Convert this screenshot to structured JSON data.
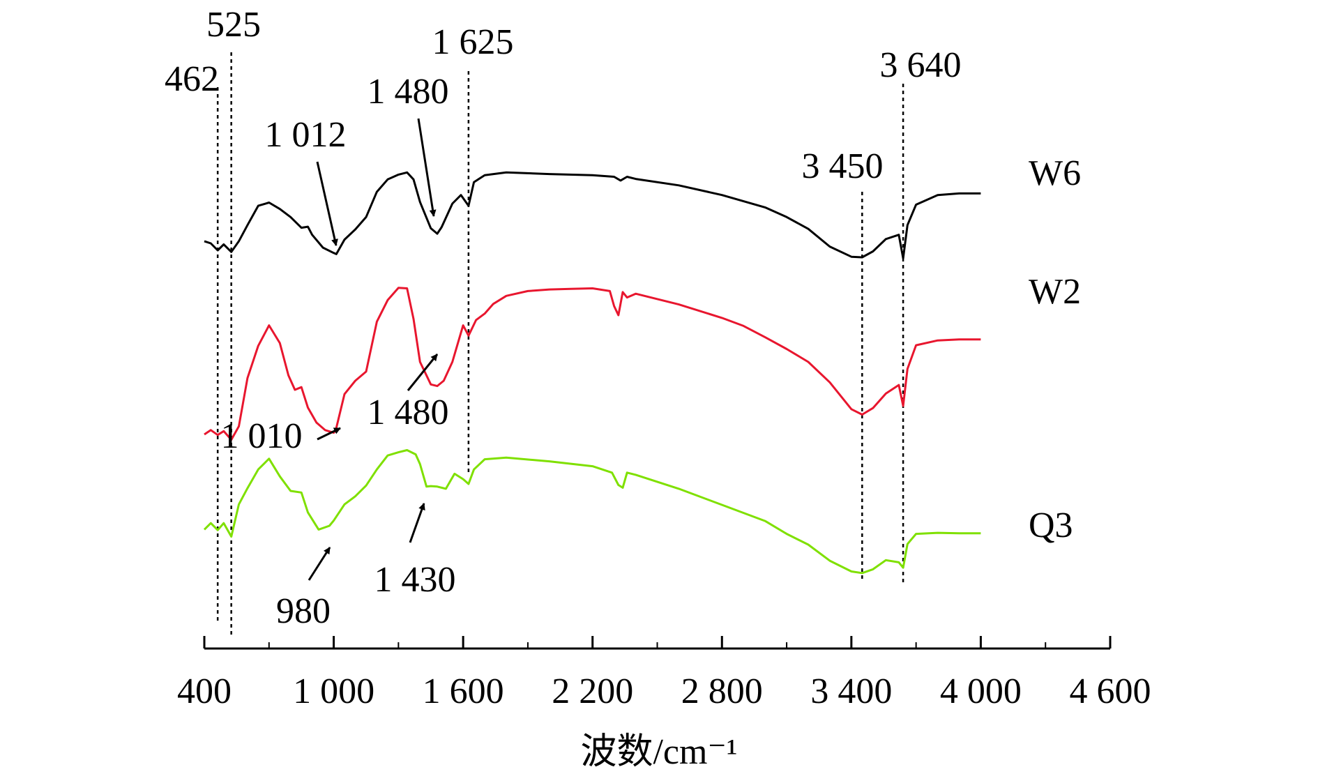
{
  "chart_data": {
    "type": "line",
    "title": "",
    "xlabel": "波数/cm⁻¹",
    "ylabel": "",
    "xlim": [
      400,
      4600
    ],
    "xticks": [
      400,
      1000,
      1600,
      2200,
      2800,
      3400,
      4000,
      4600
    ],
    "xtick_labels": [
      "400",
      "1 000",
      "1 600",
      "2 200",
      "2 800",
      "3 400",
      "4 000",
      "4 600"
    ],
    "y_axis_shown": false,
    "grid": false,
    "legend": "series labels at right end of curves",
    "reference_lines": [
      {
        "x": 462,
        "label": "462"
      },
      {
        "x": 525,
        "label": "525"
      },
      {
        "x": 1625,
        "label": "1 625"
      },
      {
        "x": 3450,
        "label": "3 450"
      },
      {
        "x": 3640,
        "label": "3 640"
      }
    ],
    "series": [
      {
        "name": "W6",
        "color": "#000000",
        "x": [
          400,
          430,
          462,
          490,
          525,
          560,
          600,
          650,
          700,
          750,
          800,
          850,
          880,
          900,
          950,
          1000,
          1012,
          1050,
          1100,
          1150,
          1200,
          1250,
          1300,
          1340,
          1370,
          1400,
          1450,
          1480,
          1500,
          1550,
          1590,
          1625,
          1650,
          1700,
          1800,
          2000,
          2200,
          2300,
          2330,
          2360,
          2400,
          2600,
          2800,
          3000,
          3100,
          3200,
          3300,
          3400,
          3450,
          3500,
          3560,
          3620,
          3640,
          3660,
          3700,
          3800,
          3900,
          4000
        ],
        "y": [
          23.0,
          22.6,
          21.3,
          22.4,
          21.0,
          23.0,
          26.0,
          29.6,
          30.2,
          29.0,
          27.5,
          25.5,
          25.7,
          24.2,
          21.8,
          20.8,
          20.6,
          23.3,
          25.2,
          27.5,
          32.2,
          34.5,
          35.4,
          35.8,
          34.5,
          30.3,
          25.4,
          24.4,
          25.6,
          30.0,
          31.6,
          29.6,
          34.0,
          35.3,
          35.8,
          35.5,
          35.3,
          35.0,
          34.3,
          35.0,
          34.6,
          33.4,
          31.6,
          29.3,
          27.5,
          25.3,
          22.0,
          20.1,
          20.0,
          21.1,
          23.4,
          24.2,
          19.8,
          26.0,
          29.8,
          31.6,
          31.9,
          31.9
        ]
      },
      {
        "name": "W2",
        "color": "#e8162e",
        "x": [
          400,
          430,
          462,
          490,
          525,
          560,
          600,
          650,
          700,
          750,
          790,
          820,
          850,
          880,
          920,
          960,
          1000,
          1010,
          1050,
          1100,
          1150,
          1200,
          1250,
          1300,
          1340,
          1370,
          1400,
          1450,
          1480,
          1510,
          1550,
          1600,
          1625,
          1660,
          1700,
          1740,
          1800,
          1900,
          2000,
          2100,
          2200,
          2280,
          2300,
          2320,
          2340,
          2360,
          2400,
          2600,
          2800,
          2900,
          3000,
          3100,
          3200,
          3300,
          3400,
          3450,
          3500,
          3560,
          3620,
          3640,
          3660,
          3700,
          3800,
          3900,
          4000
        ],
        "y": [
          6.5,
          7.3,
          6.4,
          7.1,
          5.5,
          8.0,
          17.0,
          23.0,
          26.8,
          23.5,
          17.5,
          14.8,
          15.3,
          11.5,
          8.7,
          7.3,
          6.8,
          7.4,
          14.0,
          16.5,
          18.2,
          27.5,
          31.5,
          33.8,
          33.7,
          28.0,
          20.0,
          15.8,
          15.5,
          16.5,
          20.0,
          26.8,
          24.9,
          27.8,
          29.0,
          30.8,
          32.3,
          33.2,
          33.5,
          33.6,
          33.7,
          33.2,
          30.4,
          28.7,
          33.0,
          32.0,
          32.7,
          30.7,
          28.2,
          26.7,
          24.6,
          22.4,
          20.0,
          16.2,
          11.2,
          10.2,
          11.4,
          14.1,
          15.7,
          11.8,
          18.7,
          23.1,
          24.0,
          24.2,
          24.2
        ]
      },
      {
        "name": "Q3",
        "color": "#7fe000",
        "x": [
          400,
          430,
          462,
          490,
          525,
          560,
          600,
          650,
          700,
          750,
          800,
          850,
          880,
          930,
          980,
          1000,
          1050,
          1100,
          1150,
          1200,
          1250,
          1300,
          1340,
          1380,
          1400,
          1430,
          1450,
          1480,
          1520,
          1560,
          1600,
          1625,
          1650,
          1700,
          1800,
          2000,
          2200,
          2290,
          2320,
          2340,
          2360,
          2400,
          2600,
          2800,
          3000,
          3100,
          3200,
          3300,
          3400,
          3450,
          3500,
          3560,
          3620,
          3640,
          3660,
          3700,
          3800,
          3900,
          4000
        ],
        "y": [
          -7.2,
          -6.0,
          -7.3,
          -6.0,
          -8.5,
          -2.5,
          0.5,
          4.0,
          6.0,
          2.7,
          0.0,
          -0.3,
          -4.0,
          -7.2,
          -6.5,
          -5.5,
          -2.5,
          -1.0,
          1.0,
          4.0,
          6.6,
          7.2,
          7.6,
          6.8,
          5.0,
          0.8,
          0.9,
          0.8,
          0.4,
          3.2,
          2.2,
          1.3,
          4.0,
          5.9,
          6.2,
          5.5,
          4.6,
          3.4,
          1.1,
          0.6,
          3.4,
          3.0,
          0.4,
          -2.6,
          -5.6,
          -8.0,
          -10.0,
          -13.0,
          -15.0,
          -15.3,
          -14.6,
          -12.9,
          -13.3,
          -14.3,
          -9.9,
          -8.0,
          -7.8,
          -7.9,
          -7.9
        ]
      }
    ],
    "annotations": [
      {
        "text": "1 012",
        "x": 1012,
        "series": "W6"
      },
      {
        "text": "1 480",
        "x": 1480,
        "series": "W6"
      },
      {
        "text": "1 010",
        "x": 1010,
        "series": "W2"
      },
      {
        "text": "1 480",
        "x": 1480,
        "series": "W2"
      },
      {
        "text": "980",
        "x": 980,
        "series": "Q3"
      },
      {
        "text": "1 430",
        "x": 1430,
        "series": "Q3"
      }
    ]
  }
}
